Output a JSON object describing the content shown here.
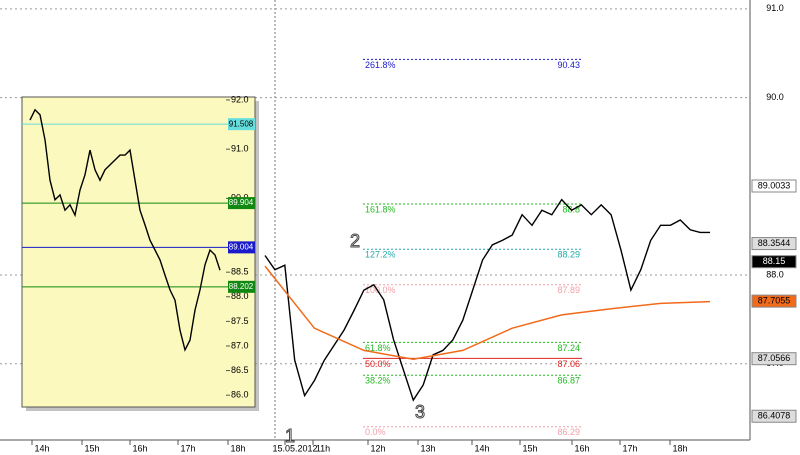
{
  "chart_data": {
    "type": "line",
    "ylim": [
      86.14,
      91.1
    ],
    "yticks": [
      {
        "value": 91,
        "label": "91.0"
      },
      {
        "value": 90,
        "label": "90.0"
      },
      {
        "value": 88,
        "label": "88.0"
      },
      {
        "value": 87,
        "label": "87.0"
      }
    ],
    "grid": true,
    "x_labels": [
      "14h",
      "15h",
      "16h",
      "17h",
      "18h",
      "15.05.2012",
      "11h",
      "12h",
      "13h",
      "14h",
      "15h",
      "16h",
      "17h",
      "18h"
    ],
    "series": [
      {
        "color": "#000000",
        "values": [
          88.22,
          88.06,
          88.11,
          87.04,
          86.64,
          86.81,
          87.04,
          87.21,
          87.38,
          87.6,
          87.83,
          87.89,
          87.72,
          87.27,
          86.93,
          86.59,
          86.76,
          87.1,
          87.15,
          87.27,
          87.49,
          87.83,
          88.17,
          88.34,
          88.39,
          88.45,
          88.68,
          88.56,
          88.73,
          88.68,
          88.85,
          88.73,
          88.79,
          88.68,
          88.79,
          88.68,
          88.28,
          87.83,
          88.06,
          88.39,
          88.56,
          88.56,
          88.62,
          88.51,
          88.48,
          88.48
        ]
      },
      {
        "color": "#f06a1a",
        "values": [
          88.1,
          87.4,
          87.15,
          87.05,
          87.15,
          87.4,
          87.55,
          87.62,
          87.68,
          87.7
        ]
      }
    ],
    "fib_levels": [
      {
        "label": "261.8%",
        "value": 90.43,
        "color": "#1a1acc"
      },
      {
        "label": "161.8%",
        "value": 88.8,
        "color": "#22bb22"
      },
      {
        "label": "127.2%",
        "value": 88.29,
        "color": "#22aaaa"
      },
      {
        "label": "100.0%",
        "value": 87.89,
        "color": "#f0a0a8"
      },
      {
        "label": "61.8%",
        "value": 87.24,
        "color": "#22bb22"
      },
      {
        "label": "50.0%",
        "value": 87.06,
        "color": "#dd2222"
      },
      {
        "label": "38.2%",
        "value": 86.87,
        "color": "#22bb22"
      },
      {
        "label": "0.0%",
        "value": 86.29,
        "color": "#f0a0a8"
      }
    ],
    "price_tags": [
      {
        "value": 89.0033,
        "bg": "#ffffff",
        "fg": "#000000"
      },
      {
        "value": 88.3544,
        "bg": "#dddddd",
        "fg": "#000000"
      },
      {
        "value": 88.15,
        "bg": "#000000",
        "fg": "#ffffff"
      },
      {
        "value": 87.7055,
        "bg": "#f06a1a",
        "fg": "#000000"
      },
      {
        "value": 87.0566,
        "bg": "#dddddd",
        "fg": "#000000"
      },
      {
        "value": 86.4078,
        "bg": "#dddddd",
        "fg": "#000000"
      }
    ],
    "annotations": [
      "1",
      "2",
      "3"
    ],
    "inset": {
      "ylim": [
        85.76,
        92.06
      ],
      "yticks": [
        {
          "value": 92,
          "label": "92.0"
        },
        {
          "value": 91,
          "label": "91.0"
        },
        {
          "value": 90,
          "label": "90.0"
        },
        {
          "value": 88.5,
          "label": "88.5"
        },
        {
          "value": 88,
          "label": "88.0"
        },
        {
          "value": 87.5,
          "label": "87.5"
        },
        {
          "value": 87,
          "label": "87.0"
        },
        {
          "value": 86.5,
          "label": "86.5"
        },
        {
          "value": 86,
          "label": "86.0"
        }
      ],
      "series": [
        {
          "color": "#000000",
          "values": [
            91.59,
            91.8,
            91.7,
            91.19,
            90.37,
            89.97,
            90.07,
            89.76,
            89.87,
            89.66,
            90.17,
            90.48,
            90.98,
            90.58,
            90.37,
            90.58,
            90.68,
            90.78,
            90.88,
            90.88,
            90.98,
            90.37,
            89.76,
            89.46,
            89.15,
            88.95,
            88.75,
            88.44,
            88.14,
            87.93,
            87.32,
            86.92,
            87.12,
            87.73,
            88.14,
            88.65,
            88.95,
            88.85,
            88.54
          ]
        }
      ],
      "price_tags": [
        {
          "value": 91.508,
          "color": "#66dddd"
        },
        {
          "value": 89.904,
          "color": "#118811"
        },
        {
          "value": 89.004,
          "color": "#1a1acc"
        },
        {
          "value": 88.202,
          "color": "#118811"
        }
      ]
    }
  }
}
